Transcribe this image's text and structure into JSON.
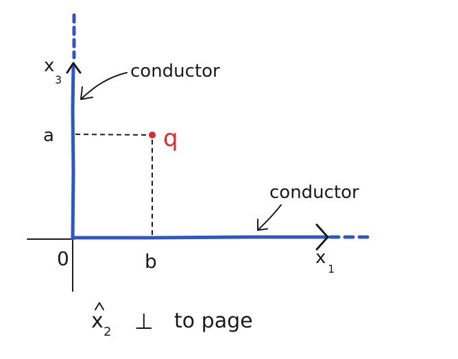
{
  "colors": {
    "conductor": "#2f56c8",
    "ink": "#1a1a1a",
    "charge": "#e02a2a"
  },
  "labels": {
    "x3_axis": "x",
    "x3_sub": "3",
    "x1_axis": "x",
    "x1_sub": "1",
    "origin": "0",
    "a": "a",
    "b": "b",
    "charge": "q",
    "conductor_top": "conductor",
    "conductor_right": "conductor",
    "caption_symbol": "x",
    "caption_sub": "2",
    "caption_perp": "⊥",
    "caption_rest": "to page"
  }
}
